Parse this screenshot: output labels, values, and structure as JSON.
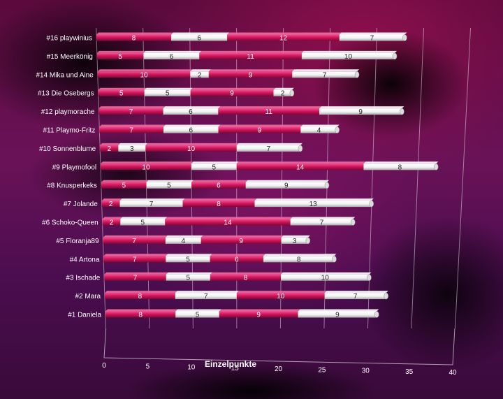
{
  "chart_data": {
    "type": "bar",
    "orientation": "horizontal-stacked-3d",
    "xlabel": "Einzelpunkte",
    "xlim": [
      0,
      40
    ],
    "xticks": [
      0,
      5,
      10,
      15,
      20,
      25,
      30,
      35,
      40
    ],
    "grid": true,
    "colors": [
      "#d3145e",
      "#ffffff",
      "#d3145e",
      "#ffffff"
    ],
    "categories": [
      "#1 Daniela",
      "#2 Mara",
      "#3 Ischade",
      "#4 Artona",
      "#5 Floranja89",
      "#6 Schoko-Queen",
      "#7 Jolande",
      "#8 Knusperkeks",
      "#9 Playmofool",
      "#10 Sonnenblume",
      "#11 Playmo-Fritz",
      "#12 playmorache",
      "#13 Die Osebergs",
      "#14 Mika und Aine",
      "#15 Meerkönig",
      "#16 playwinius"
    ],
    "series": [
      {
        "values": [
          8,
          8,
          7,
          7,
          7,
          2,
          2,
          5,
          10,
          2,
          7,
          7,
          5,
          10,
          5,
          8
        ]
      },
      {
        "values": [
          5,
          7,
          5,
          5,
          4,
          5,
          7,
          5,
          5,
          3,
          6,
          6,
          5,
          2,
          6,
          6
        ]
      },
      {
        "values": [
          9,
          10,
          8,
          6,
          9,
          14,
          8,
          6,
          14,
          10,
          9,
          11,
          9,
          9,
          11,
          12
        ]
      },
      {
        "values": [
          9,
          7,
          10,
          8,
          3,
          7,
          13,
          9,
          8,
          7,
          4,
          9,
          2,
          7,
          10,
          7
        ]
      }
    ]
  }
}
